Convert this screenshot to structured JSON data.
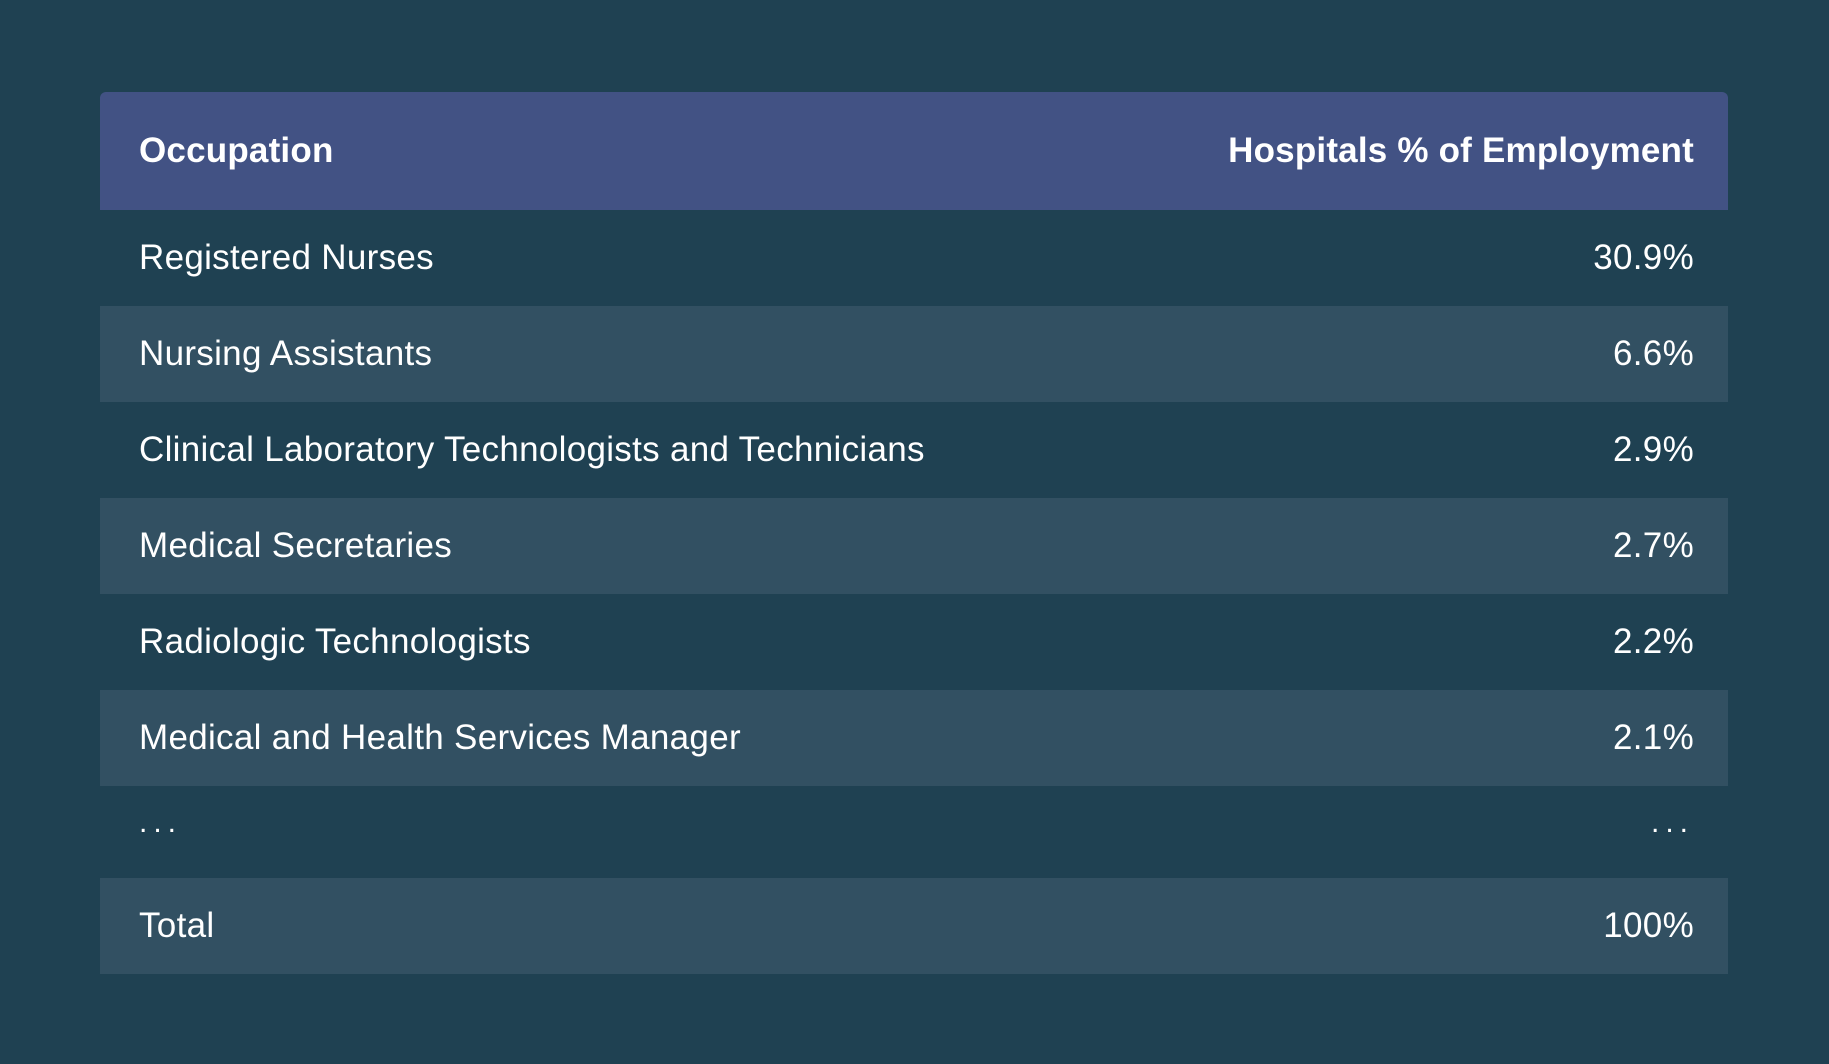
{
  "table": {
    "headers": [
      "Occupation",
      "Hospitals % of Employment"
    ],
    "rows": [
      [
        "Registered Nurses",
        "30.9%"
      ],
      [
        "Nursing Assistants",
        "6.6%"
      ],
      [
        "Clinical Laboratory Technologists and Technicians",
        "2.9%"
      ],
      [
        "Medical Secretaries",
        "2.7%"
      ],
      [
        "Radiologic Technologists",
        "2.2%"
      ],
      [
        "Medical and Health Services Manager",
        "2.1%"
      ],
      [
        "...",
        "..."
      ],
      [
        "Total",
        "100%"
      ]
    ]
  },
  "colors": {
    "background": "#1f4152",
    "header": "#425284",
    "stripe": "#325062",
    "text": "#ffffff"
  }
}
